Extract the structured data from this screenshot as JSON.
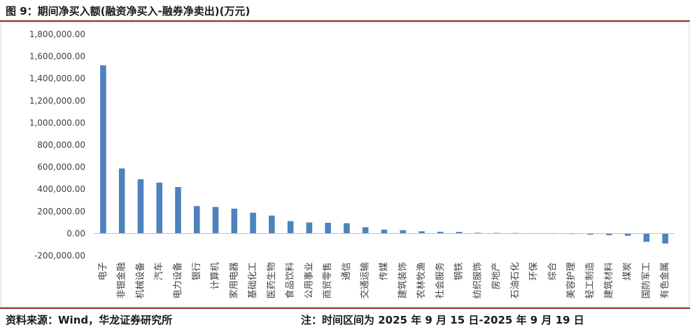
{
  "header": {
    "title": "图 9：期间净买入额(融资净买入-融券净卖出)(万元)"
  },
  "footer": {
    "source": "资料来源：Wind，华龙证券研究所",
    "note": "注：时间区间为 2025 年 9 月 15 日-2025 年 9 月 19 日"
  },
  "chart_data": {
    "type": "bar",
    "title": "期间净买入额(融资净买入-融券净卖出)(万元)",
    "xlabel": "",
    "ylabel": "",
    "ylim": [
      -200000,
      1800000
    ],
    "yticks": [
      1800000,
      1600000,
      1400000,
      1200000,
      1000000,
      800000,
      600000,
      400000,
      200000,
      0,
      -200000
    ],
    "ytick_labels": [
      "1,800,000.00",
      "1,600,000.00",
      "1,400,000.00",
      "1,200,000.00",
      "1,000,000.00",
      "800,000.00",
      "600,000.00",
      "400,000.00",
      "200,000.00",
      "0.00",
      "-200,000.00"
    ],
    "grid": false,
    "legend": "none",
    "bar_color": "#4f81bd",
    "categories": [
      "电子",
      "非银金融",
      "机械设备",
      "汽车",
      "电力设备",
      "银行",
      "计算机",
      "家用电器",
      "基础化工",
      "医药生物",
      "食品饮料",
      "公用事业",
      "商贸零售",
      "通信",
      "交通运输",
      "传媒",
      "建筑装饰",
      "农林牧渔",
      "社会服务",
      "钢铁",
      "纺织服饰",
      "房地产",
      "石油石化",
      "环保",
      "综合",
      "美容护理",
      "轻工制造",
      "建筑材料",
      "煤炭",
      "国防军工",
      "有色金属"
    ],
    "values": [
      1520000,
      588000,
      490000,
      460000,
      420000,
      248000,
      240000,
      225000,
      188000,
      162000,
      112000,
      100000,
      97000,
      93000,
      57000,
      35000,
      30000,
      20000,
      16000,
      15000,
      7000,
      6000,
      5000,
      2000,
      1000,
      -3000,
      -10000,
      -15000,
      -20000,
      -75000,
      -90000
    ]
  }
}
